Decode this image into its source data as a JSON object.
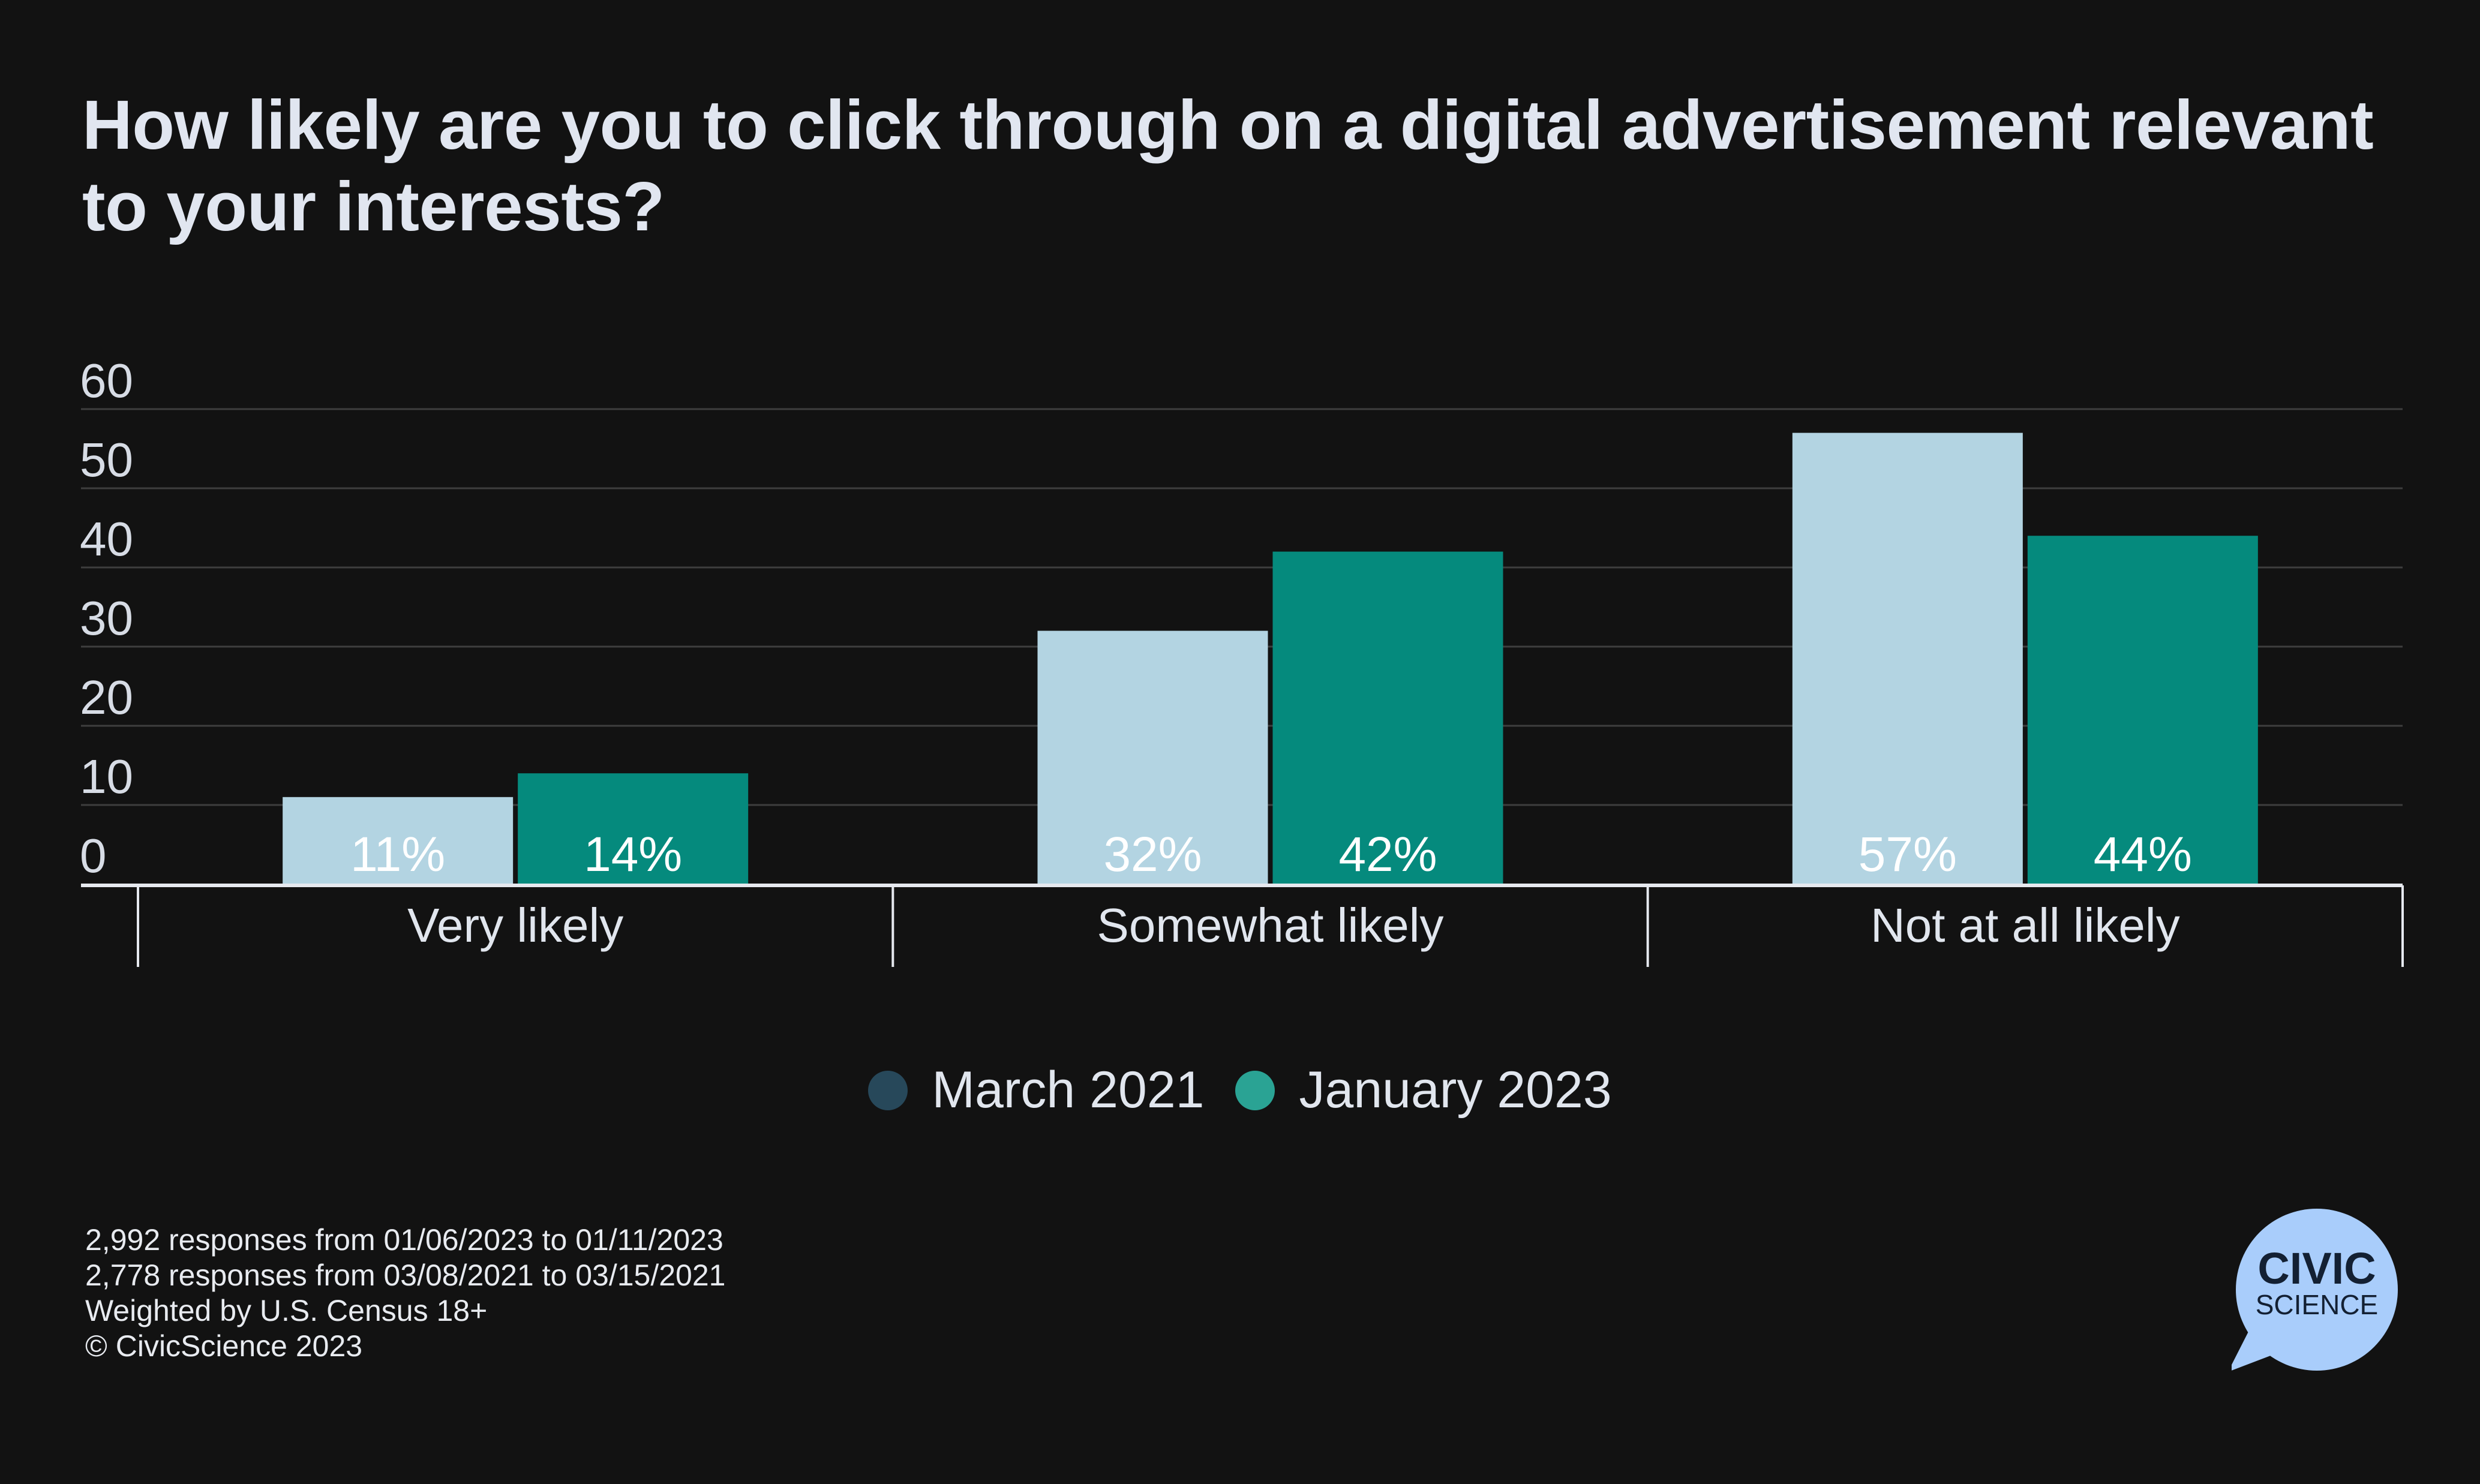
{
  "chart_data": {
    "type": "bar",
    "title": "How likely are you to click through on a digital advertisement relevant to your interests?",
    "categories": [
      "Very likely",
      "Somewhat likely",
      "Not at all likely"
    ],
    "series": [
      {
        "name": "March 2021",
        "values": [
          11,
          32,
          57
        ],
        "labels": [
          "11%",
          "32%",
          "57%"
        ],
        "bar_color": "#b3d4e2",
        "legend_color": "#27485a"
      },
      {
        "name": "January 2023",
        "values": [
          14,
          42,
          44
        ],
        "labels": [
          "14%",
          "42%",
          "44%"
        ],
        "bar_color": "#058a7d",
        "legend_color": "#2aa394"
      }
    ],
    "yticks": [
      "0",
      "10",
      "20",
      "30",
      "40",
      "50",
      "60"
    ],
    "ylim": [
      0,
      60
    ],
    "xlabel": "",
    "ylabel": "",
    "grid": true,
    "legend_position": "bottom-center"
  },
  "footnotes": [
    "2,992 responses from 01/06/2023 to 01/11/2023",
    "2,778 responses from 03/08/2021 to 03/15/2021",
    "Weighted by U.S. Census 18+",
    "© CivicScience 2023"
  ],
  "logo": {
    "line1": "CIVIC",
    "line2": "SCIENCE",
    "color": "#a9cdfb"
  },
  "colors": {
    "background": "#121212",
    "gridline": "#3e3e3e",
    "axis": "#e6e9ef"
  }
}
